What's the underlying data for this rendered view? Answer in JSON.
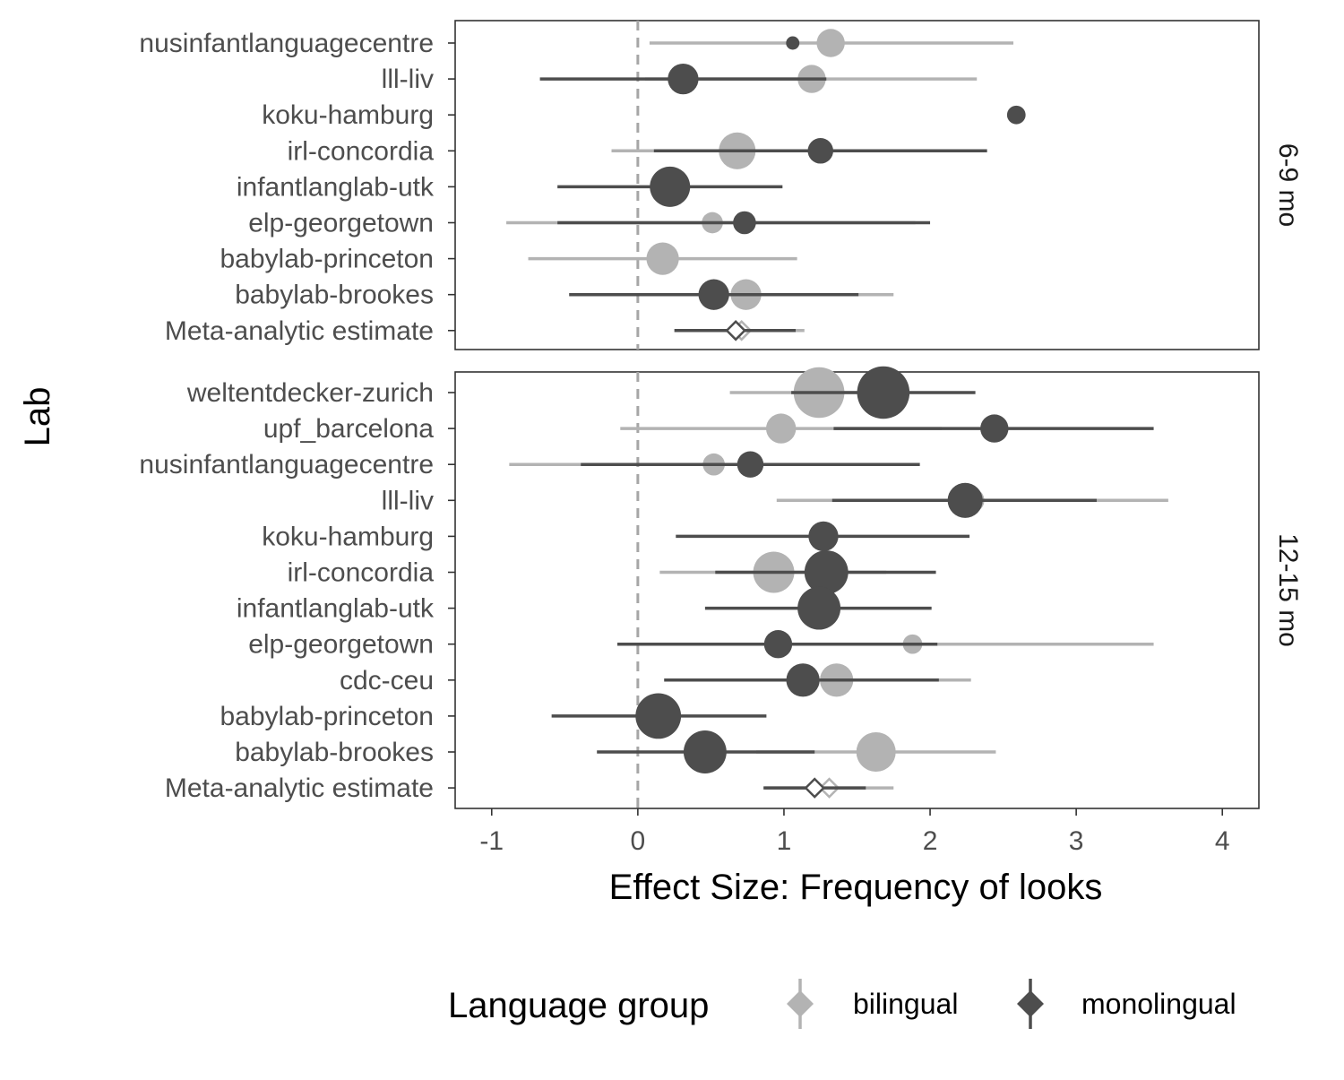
{
  "chart_data": {
    "type": "forest",
    "xlabel": "Effect Size: Frequency of looks",
    "ylabel": "Lab",
    "xlim": [
      -1.25,
      4.25
    ],
    "x_ticks": [
      -1,
      0,
      1,
      2,
      3,
      4
    ],
    "x_tick_labels": [
      "-1",
      "0",
      "1",
      "2",
      "3",
      "4"
    ],
    "reference_line": 0,
    "grid": false,
    "legend": {
      "title": "Language group",
      "placement": "bottom",
      "entries": [
        {
          "name": "bilingual",
          "color": "#b3b3b3"
        },
        {
          "name": "monolingual",
          "color": "#4d4d4d"
        }
      ]
    },
    "colors": {
      "bilingual": "#b3b3b3",
      "monolingual": "#4d4d4d",
      "reference_line": "#a6a6a6",
      "panel_border": "#333333"
    },
    "panels": [
      {
        "strip_label": "6-9 mo",
        "labs": [
          "nusinfantlanguagecentre",
          "lll-liv",
          "koku-hamburg",
          "irl-concordia",
          "infantlanglab-utk",
          "elp-georgetown",
          "babylab-princeton",
          "babylab-brookes",
          "Meta-analytic estimate"
        ],
        "series": [
          {
            "name": "bilingual",
            "points": [
              {
                "lab": "nusinfantlanguagecentre",
                "estimate": 1.32,
                "ci": [
                  0.08,
                  2.57
                ],
                "weight": 2
              },
              {
                "lab": "lll-liv",
                "estimate": 1.19,
                "ci": [
                  0.05,
                  2.32
                ],
                "weight": 2
              },
              {
                "lab": "irl-concordia",
                "estimate": 0.68,
                "ci": [
                  -0.18,
                  1.53
                ],
                "weight": 3
              },
              {
                "lab": "elp-georgetown",
                "estimate": 0.51,
                "ci": [
                  -0.9,
                  1.9
                ],
                "weight": 1.2
              },
              {
                "lab": "babylab-princeton",
                "estimate": 0.17,
                "ci": [
                  -0.75,
                  1.09
                ],
                "weight": 2.5
              },
              {
                "lab": "babylab-brookes",
                "estimate": 0.74,
                "ci": [
                  -0.26,
                  1.75
                ],
                "weight": 2.3
              },
              {
                "lab": "Meta-analytic estimate",
                "estimate": 0.71,
                "ci": [
                  0.29,
                  1.14
                ],
                "diamond": true
              }
            ]
          },
          {
            "name": "monolingual",
            "points": [
              {
                "lab": "nusinfantlanguagecentre",
                "estimate": 1.06,
                "ci": null,
                "weight": 0.3
              },
              {
                "lab": "lll-liv",
                "estimate": 0.31,
                "ci": [
                  -0.67,
                  1.29
                ],
                "weight": 2.3
              },
              {
                "lab": "koku-hamburg",
                "estimate": 2.59,
                "ci": null,
                "weight": 0.9
              },
              {
                "lab": "irl-concordia",
                "estimate": 1.25,
                "ci": [
                  0.11,
                  2.39
                ],
                "weight": 1.7
              },
              {
                "lab": "infantlanglab-utk",
                "estimate": 0.22,
                "ci": [
                  -0.55,
                  0.99
                ],
                "weight": 3.4
              },
              {
                "lab": "elp-georgetown",
                "estimate": 0.73,
                "ci": [
                  -0.55,
                  2.0
                ],
                "weight": 1.4
              },
              {
                "lab": "babylab-brookes",
                "estimate": 0.52,
                "ci": [
                  -0.47,
                  1.51
                ],
                "weight": 2.3
              },
              {
                "lab": "Meta-analytic estimate",
                "estimate": 0.67,
                "ci": [
                  0.25,
                  1.08
                ],
                "diamond": true
              }
            ]
          }
        ]
      },
      {
        "strip_label": "12-15 mo",
        "labs": [
          "weltentdecker-zurich",
          "upf_barcelona",
          "nusinfantlanguagecentre",
          "lll-liv",
          "koku-hamburg",
          "irl-concordia",
          "infantlanglab-utk",
          "elp-georgetown",
          "cdc-ceu",
          "babylab-princeton",
          "babylab-brookes",
          "Meta-analytic estimate"
        ],
        "series": [
          {
            "name": "bilingual",
            "points": [
              {
                "lab": "weltentdecker-zurich",
                "estimate": 1.24,
                "ci": [
                  0.63,
                  1.86
                ],
                "weight": 4.6
              },
              {
                "lab": "upf_barcelona",
                "estimate": 0.98,
                "ci": [
                  -0.12,
                  2.08
                ],
                "weight": 2.2
              },
              {
                "lab": "nusinfantlanguagecentre",
                "estimate": 0.52,
                "ci": [
                  -0.88,
                  1.91
                ],
                "weight": 1.3
              },
              {
                "lab": "lll-liv",
                "estimate": 2.29,
                "ci": [
                  0.95,
                  3.63
                ],
                "weight": 1.5
              },
              {
                "lab": "irl-concordia",
                "estimate": 0.93,
                "ci": [
                  0.15,
                  1.7
                ],
                "weight": 3.5
              },
              {
                "lab": "elp-georgetown",
                "estimate": 1.88,
                "ci": [
                  0.22,
                  3.53
                ],
                "weight": 1.0
              },
              {
                "lab": "cdc-ceu",
                "estimate": 1.36,
                "ci": [
                  0.44,
                  2.28
                ],
                "weight": 2.6
              },
              {
                "lab": "babylab-brookes",
                "estimate": 1.63,
                "ci": [
                  0.81,
                  2.45
                ],
                "weight": 3.3
              },
              {
                "lab": "Meta-analytic estimate",
                "estimate": 1.31,
                "ci": [
                  0.87,
                  1.75
                ],
                "diamond": true
              }
            ]
          },
          {
            "name": "monolingual",
            "points": [
              {
                "lab": "weltentdecker-zurich",
                "estimate": 1.68,
                "ci": [
                  1.05,
                  2.31
                ],
                "weight": 4.8
              },
              {
                "lab": "upf_barcelona",
                "estimate": 2.44,
                "ci": [
                  1.34,
                  3.53
                ],
                "weight": 2.0
              },
              {
                "lab": "nusinfantlanguagecentre",
                "estimate": 0.77,
                "ci": [
                  -0.39,
                  1.93
                ],
                "weight": 1.8
              },
              {
                "lab": "lll-liv",
                "estimate": 2.24,
                "ci": [
                  1.33,
                  3.14
                ],
                "weight": 2.8
              },
              {
                "lab": "koku-hamburg",
                "estimate": 1.27,
                "ci": [
                  0.26,
                  2.27
                ],
                "weight": 2.2
              },
              {
                "lab": "irl-concordia",
                "estimate": 1.29,
                "ci": [
                  0.53,
                  2.04
                ],
                "weight": 3.8
              },
              {
                "lab": "infantlanglab-utk",
                "estimate": 1.24,
                "ci": [
                  0.46,
                  2.01
                ],
                "weight": 3.7
              },
              {
                "lab": "elp-georgetown",
                "estimate": 0.96,
                "ci": [
                  -0.14,
                  2.05
                ],
                "weight": 2.0
              },
              {
                "lab": "cdc-ceu",
                "estimate": 1.13,
                "ci": [
                  0.18,
                  2.06
                ],
                "weight": 2.6
              },
              {
                "lab": "babylab-princeton",
                "estimate": 0.14,
                "ci": [
                  -0.59,
                  0.88
                ],
                "weight": 4.0
              },
              {
                "lab": "babylab-brookes",
                "estimate": 0.46,
                "ci": [
                  -0.28,
                  1.21
                ],
                "weight": 3.7
              },
              {
                "lab": "Meta-analytic estimate",
                "estimate": 1.21,
                "ci": [
                  0.86,
                  1.56
                ],
                "diamond": true
              }
            ]
          }
        ]
      }
    ]
  }
}
